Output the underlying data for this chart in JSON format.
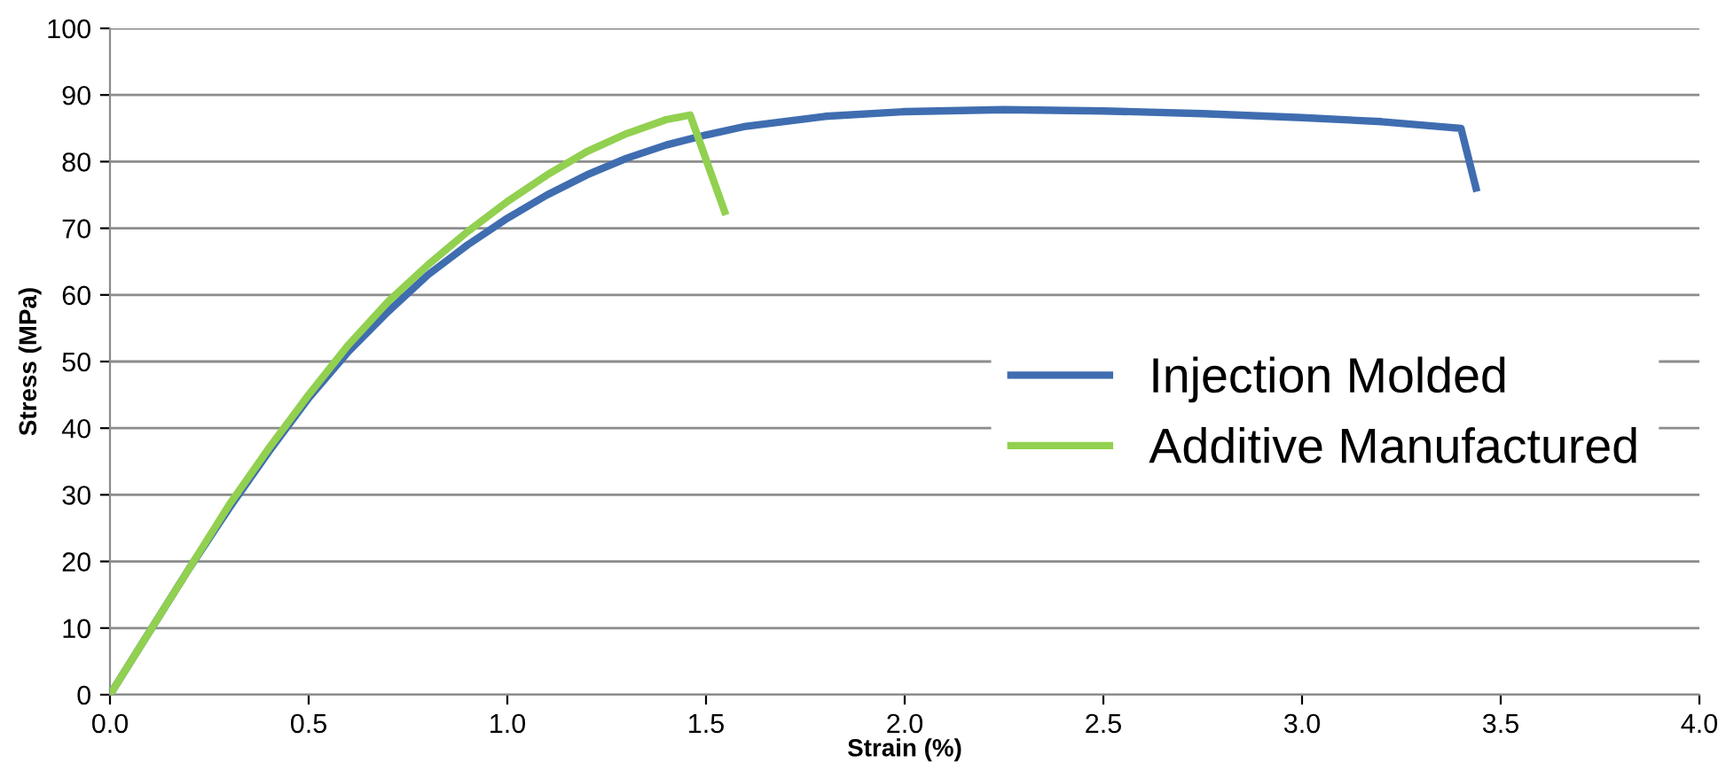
{
  "chart_data": {
    "type": "line",
    "xlabel": "Strain (%)",
    "ylabel": "Stress (MPa)",
    "xlim": [
      0,
      4
    ],
    "xticks": [
      {
        "value": 0,
        "label": "0.0"
      },
      {
        "value": 0.5,
        "label": "0.5"
      },
      {
        "value": 1,
        "label": "1.0"
      },
      {
        "value": 1.5,
        "label": "1.5"
      },
      {
        "value": 2,
        "label": "2.0"
      },
      {
        "value": 2.5,
        "label": "2.5"
      },
      {
        "value": 3,
        "label": "3.0"
      },
      {
        "value": 3.5,
        "label": "3.5"
      },
      {
        "value": 4,
        "label": "4.0"
      }
    ],
    "ylim": [
      0,
      100
    ],
    "yticks": [
      0,
      10,
      20,
      30,
      40,
      50,
      60,
      70,
      80,
      90,
      100
    ],
    "grid": "y",
    "legend": "right",
    "marker": "none",
    "line_style": "solid",
    "series": [
      {
        "name": "Injection Molded",
        "color": "#3f6db0",
        "x": [
          0,
          0.1,
          0.2,
          0.3,
          0.4,
          0.5,
          0.6,
          0.7,
          0.8,
          0.9,
          1.0,
          1.1,
          1.2,
          1.3,
          1.4,
          1.5,
          1.6,
          1.8,
          2.0,
          2.25,
          2.5,
          2.75,
          3.0,
          3.2,
          3.4,
          3.44
        ],
        "values": [
          0,
          9.5,
          19,
          28,
          36.5,
          44.5,
          51.5,
          57.5,
          63,
          67.5,
          71.5,
          75,
          78,
          80.5,
          82.5,
          84,
          85.3,
          86.8,
          87.5,
          87.8,
          87.6,
          87.2,
          86.6,
          86,
          85,
          75.5
        ]
      },
      {
        "name": "Additive Manufactured",
        "color": "#92d050",
        "x": [
          0,
          0.1,
          0.2,
          0.3,
          0.4,
          0.5,
          0.6,
          0.7,
          0.8,
          0.9,
          1.0,
          1.1,
          1.2,
          1.3,
          1.4,
          1.46,
          1.55
        ],
        "values": [
          0,
          9.5,
          19,
          28.5,
          37,
          45,
          52.5,
          59,
          64.5,
          69.5,
          74,
          78,
          81.5,
          84.2,
          86.3,
          87,
          72
        ]
      }
    ]
  }
}
